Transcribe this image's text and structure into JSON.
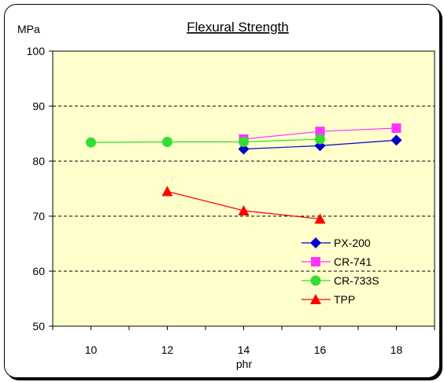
{
  "chart_data": {
    "type": "line",
    "title": "Flexural Strength",
    "ylabel": "MPa",
    "xlabel": "phr",
    "x_ticks": [
      "10",
      "12",
      "14",
      "16",
      "18"
    ],
    "y_ticks": [
      "50",
      "60",
      "70",
      "80",
      "90",
      "100"
    ],
    "xlim": [
      9,
      19
    ],
    "ylim": [
      50,
      100
    ],
    "grid": "horizontal dashed",
    "legend_position": "bottom-right",
    "series": [
      {
        "name": "PX-200",
        "marker": "diamond",
        "color": "#0000cc",
        "x": [
          14,
          16,
          18
        ],
        "y": [
          82.2,
          82.8,
          83.8
        ]
      },
      {
        "name": "CR-741",
        "marker": "square",
        "color": "#ff33ff",
        "x": [
          14,
          16,
          18
        ],
        "y": [
          84.0,
          85.4,
          86.0
        ]
      },
      {
        "name": "CR-733S",
        "marker": "circle",
        "color": "#33dd33",
        "x": [
          10,
          12,
          14,
          16
        ],
        "y": [
          83.4,
          83.5,
          83.5,
          84.0
        ]
      },
      {
        "name": "TPP",
        "marker": "triangle",
        "color": "#ff0000",
        "x": [
          12,
          14,
          16
        ],
        "y": [
          74.5,
          71.0,
          69.5
        ]
      }
    ]
  }
}
